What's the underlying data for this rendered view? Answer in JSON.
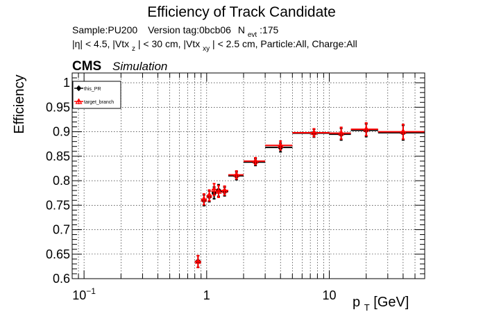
{
  "chart_data": {
    "type": "scatter",
    "title": "Efficiency of Track Candidate",
    "subtitle_line1": {
      "sample": "Sample:PU200",
      "version": "Version tag:0bcb06",
      "nevt_prefix": "N",
      "nevt_sub": "evt",
      "nevt_value": ":175"
    },
    "subtitle_line2": {
      "p1": "|η| < 4.5, |Vtx",
      "s1": "z",
      "p2": "| < 30 cm, |Vtx",
      "s2": "xy",
      "p3": "| < 2.5 cm, Particle:All, Charge:All"
    },
    "cms_label": "CMS",
    "simulation_label": "Simulation",
    "ylabel": "Efficiency",
    "xlabel": {
      "main": "p",
      "sub": "T",
      "unit": " [GeV]"
    },
    "xscale": "log",
    "xlim": [
      0.08,
      60
    ],
    "ylim": [
      0.6,
      1.02
    ],
    "grid": true,
    "legend_position": "top-left",
    "x_tick_labels": [
      {
        "value": 0.1,
        "base": "10",
        "exp": "−1"
      },
      {
        "value": 1,
        "base": "1",
        "exp": ""
      },
      {
        "value": 10,
        "base": "10",
        "exp": ""
      }
    ],
    "y_ticks": [
      0.6,
      0.65,
      0.7,
      0.75,
      0.8,
      0.85,
      0.9,
      0.95,
      1
    ],
    "y_tick_labels": [
      "0.6",
      "0.65",
      "0.7",
      "0.75",
      "0.8",
      "0.85",
      "0.9",
      "0.95",
      "1"
    ],
    "series": [
      {
        "name": "this_PR",
        "color": "#000000",
        "marker": "circle",
        "points": [
          {
            "x": 0.85,
            "xlo": 0.8,
            "xhi": 0.9,
            "y": 0.635,
            "err": 0.012
          },
          {
            "x": 0.95,
            "xlo": 0.9,
            "xhi": 1.0,
            "y": 0.76,
            "err": 0.011
          },
          {
            "x": 1.05,
            "xlo": 1.0,
            "xhi": 1.1,
            "y": 0.768,
            "err": 0.011
          },
          {
            "x": 1.15,
            "xlo": 1.1,
            "xhi": 1.2,
            "y": 0.775,
            "err": 0.012
          },
          {
            "x": 1.25,
            "xlo": 1.2,
            "xhi": 1.3,
            "y": 0.78,
            "err": 0.012
          },
          {
            "x": 1.4,
            "xlo": 1.3,
            "xhi": 1.5,
            "y": 0.778,
            "err": 0.009
          },
          {
            "x": 1.75,
            "xlo": 1.5,
            "xhi": 2.0,
            "y": 0.81,
            "err": 0.008
          },
          {
            "x": 2.5,
            "xlo": 2.0,
            "xhi": 3.0,
            "y": 0.838,
            "err": 0.007
          },
          {
            "x": 4.0,
            "xlo": 3.0,
            "xhi": 5.0,
            "y": 0.868,
            "err": 0.009
          },
          {
            "x": 7.5,
            "xlo": 5.0,
            "xhi": 10.0,
            "y": 0.897,
            "err": 0.008
          },
          {
            "x": 12.5,
            "xlo": 10.0,
            "xhi": 15.0,
            "y": 0.895,
            "err": 0.012
          },
          {
            "x": 20.0,
            "xlo": 15.0,
            "xhi": 25.0,
            "y": 0.903,
            "err": 0.013
          },
          {
            "x": 40.0,
            "xlo": 25.0,
            "xhi": 60.0,
            "y": 0.898,
            "err": 0.015
          }
        ]
      },
      {
        "name": "target_branch",
        "color": "#ff0000",
        "marker": "triangle",
        "points": [
          {
            "x": 0.85,
            "xlo": 0.8,
            "xhi": 0.9,
            "y": 0.635,
            "err": 0.012
          },
          {
            "x": 0.95,
            "xlo": 0.9,
            "xhi": 1.0,
            "y": 0.762,
            "err": 0.011
          },
          {
            "x": 1.05,
            "xlo": 1.0,
            "xhi": 1.1,
            "y": 0.77,
            "err": 0.011
          },
          {
            "x": 1.15,
            "xlo": 1.1,
            "xhi": 1.2,
            "y": 0.782,
            "err": 0.012
          },
          {
            "x": 1.25,
            "xlo": 1.2,
            "xhi": 1.3,
            "y": 0.778,
            "err": 0.012
          },
          {
            "x": 1.4,
            "xlo": 1.3,
            "xhi": 1.5,
            "y": 0.78,
            "err": 0.009
          },
          {
            "x": 1.75,
            "xlo": 1.5,
            "xhi": 2.0,
            "y": 0.812,
            "err": 0.008
          },
          {
            "x": 2.5,
            "xlo": 2.0,
            "xhi": 3.0,
            "y": 0.84,
            "err": 0.007
          },
          {
            "x": 4.0,
            "xlo": 3.0,
            "xhi": 5.0,
            "y": 0.872,
            "err": 0.009
          },
          {
            "x": 7.5,
            "xlo": 5.0,
            "xhi": 10.0,
            "y": 0.898,
            "err": 0.008
          },
          {
            "x": 12.5,
            "xlo": 10.0,
            "xhi": 15.0,
            "y": 0.897,
            "err": 0.012
          },
          {
            "x": 20.0,
            "xlo": 15.0,
            "xhi": 25.0,
            "y": 0.905,
            "err": 0.013
          },
          {
            "x": 40.0,
            "xlo": 25.0,
            "xhi": 60.0,
            "y": 0.9,
            "err": 0.015
          }
        ]
      }
    ]
  }
}
